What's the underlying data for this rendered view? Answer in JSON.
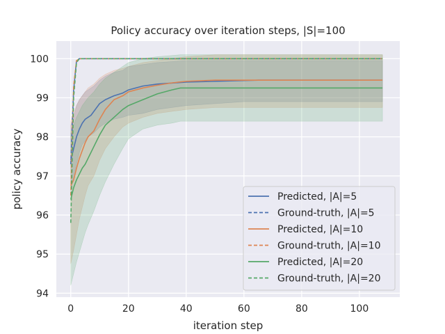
{
  "chart_data": {
    "type": "line",
    "title": "Policy accuracy over iteration steps, |S|=100",
    "xlabel": "iteration step",
    "ylabel": "policy accuracy",
    "xlim": [
      -5,
      114
    ],
    "ylim": [
      93.9,
      100.45
    ],
    "xticks": [
      0,
      20,
      40,
      60,
      80,
      100
    ],
    "yticks": [
      94,
      95,
      96,
      97,
      98,
      99,
      100
    ],
    "grid": true,
    "legend_position": "lower-right",
    "series": [
      {
        "name": "Predicted, |A|=5",
        "color": "#4c72b0",
        "style": "solid",
        "x": [
          0,
          1,
          2,
          3,
          4,
          5,
          6,
          7,
          8,
          10,
          12,
          15,
          18,
          20,
          25,
          30,
          40,
          50,
          60,
          65,
          108
        ],
        "y": [
          97.4,
          97.7,
          98.0,
          98.2,
          98.35,
          98.45,
          98.5,
          98.55,
          98.65,
          98.85,
          98.95,
          99.05,
          99.12,
          99.2,
          99.3,
          99.35,
          99.4,
          99.42,
          99.44,
          99.45,
          99.45
        ],
        "band_lower": [
          96.6,
          97.0,
          97.3,
          97.6,
          97.8,
          97.9,
          98.0,
          98.05,
          98.1,
          98.25,
          98.35,
          98.45,
          98.5,
          98.55,
          98.6,
          98.7,
          98.8,
          98.85,
          98.9,
          98.9,
          98.9
        ],
        "band_upper": [
          98.3,
          98.5,
          98.8,
          98.95,
          99.05,
          99.15,
          99.2,
          99.25,
          99.3,
          99.45,
          99.55,
          99.65,
          99.7,
          99.8,
          99.85,
          99.9,
          99.95,
          99.95,
          99.95,
          99.95,
          99.95
        ]
      },
      {
        "name": "Ground-truth, |A|=5",
        "color": "#4c72b0",
        "style": "dashed",
        "x": [
          0,
          1,
          2,
          3,
          108
        ],
        "y": [
          97.3,
          99.2,
          99.95,
          100.0,
          100.0
        ]
      },
      {
        "name": "Predicted, |A|=10",
        "color": "#dd8452",
        "style": "solid",
        "x": [
          0,
          1,
          2,
          3,
          4,
          5,
          6,
          8,
          10,
          12,
          15,
          18,
          20,
          25,
          30,
          35,
          40,
          50,
          60,
          70,
          108
        ],
        "y": [
          96.75,
          96.9,
          97.2,
          97.45,
          97.65,
          97.85,
          98.0,
          98.15,
          98.45,
          98.7,
          98.95,
          99.05,
          99.15,
          99.25,
          99.32,
          99.38,
          99.42,
          99.45,
          99.45,
          99.45,
          99.45
        ],
        "band_lower": [
          94.75,
          95.1,
          95.5,
          95.9,
          96.2,
          96.5,
          96.75,
          97.0,
          97.4,
          97.7,
          98.0,
          98.25,
          98.35,
          98.5,
          98.6,
          98.65,
          98.7,
          98.75,
          98.75,
          98.75,
          98.75
        ],
        "band_upper": [
          98.4,
          98.6,
          98.8,
          98.95,
          99.05,
          99.15,
          99.25,
          99.35,
          99.5,
          99.6,
          99.7,
          99.75,
          99.8,
          99.9,
          99.95,
          100.0,
          100.05,
          100.1,
          100.1,
          100.1,
          100.1
        ]
      },
      {
        "name": "Ground-truth, |A|=10",
        "color": "#dd8452",
        "style": "dashed",
        "x": [
          0,
          1,
          2,
          3,
          108
        ],
        "y": [
          96.5,
          99.3,
          99.95,
          100.0,
          100.0
        ]
      },
      {
        "name": "Predicted, |A|=20",
        "color": "#55a868",
        "style": "solid",
        "x": [
          0,
          1,
          2,
          3,
          4,
          5,
          6,
          8,
          10,
          12,
          15,
          18,
          20,
          25,
          30,
          35,
          38,
          40,
          45,
          50,
          60,
          80,
          108
        ],
        "y": [
          96.4,
          96.7,
          96.9,
          97.05,
          97.2,
          97.3,
          97.45,
          97.75,
          98.05,
          98.3,
          98.5,
          98.7,
          98.8,
          98.95,
          99.1,
          99.2,
          99.25,
          99.25,
          99.25,
          99.25,
          99.25,
          99.25,
          99.25
        ],
        "band_lower": [
          94.2,
          94.5,
          94.8,
          95.05,
          95.3,
          95.55,
          95.75,
          96.1,
          96.5,
          96.85,
          97.3,
          97.7,
          97.95,
          98.2,
          98.3,
          98.35,
          98.4,
          98.4,
          98.4,
          98.4,
          98.4,
          98.4,
          98.4
        ],
        "band_upper": [
          98.1,
          98.3,
          98.5,
          98.65,
          98.8,
          98.9,
          99.0,
          99.15,
          99.35,
          99.5,
          99.65,
          99.8,
          99.9,
          100.0,
          100.05,
          100.08,
          100.1,
          100.1,
          100.1,
          100.1,
          100.1,
          100.1,
          100.1
        ]
      },
      {
        "name": "Ground-truth, |A|=20",
        "color": "#55a868",
        "style": "dashed",
        "x": [
          0,
          1,
          2,
          3,
          108
        ],
        "y": [
          95.8,
          99.0,
          99.9,
          100.0,
          100.0
        ]
      }
    ]
  }
}
